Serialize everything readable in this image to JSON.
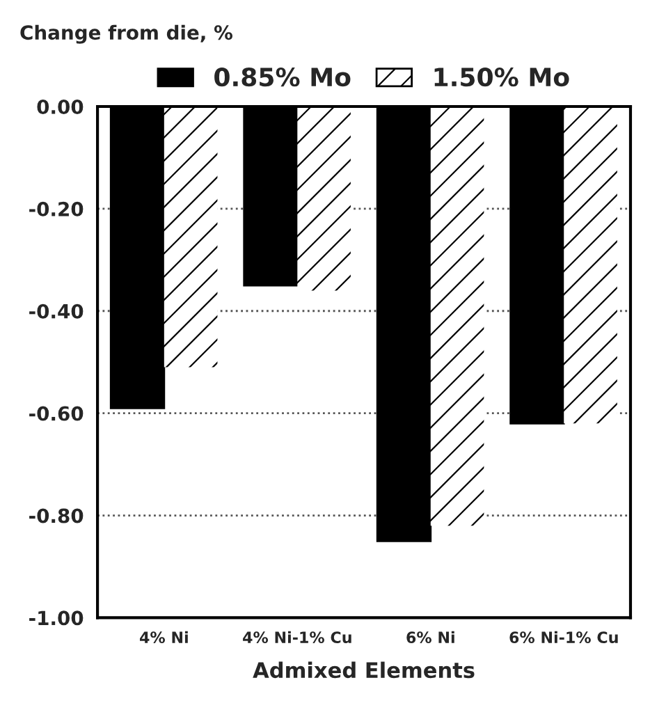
{
  "chart_data": {
    "type": "bar",
    "ylabel": "Change from die, %",
    "xlabel": "Admixed Elements",
    "categories": [
      "4% Ni",
      "4% Ni-1% Cu",
      "6% Ni",
      "6% Ni-1% Cu"
    ],
    "series": [
      {
        "name": "0.85% Mo",
        "color": "#000000",
        "values": [
          -0.59,
          -0.35,
          -0.85,
          -0.62
        ]
      },
      {
        "name": "1.50% Mo",
        "color": "#ffffff",
        "values": [
          -0.51,
          -0.36,
          -0.82,
          -0.62
        ]
      }
    ],
    "ylim": [
      -1.0,
      0.0
    ],
    "yticks": [
      {
        "value": 0.0,
        "label": "0.00"
      },
      {
        "value": -0.2,
        "label": "-0.20"
      },
      {
        "value": -0.4,
        "label": "-0.40"
      },
      {
        "value": -0.6,
        "label": "-0.60"
      },
      {
        "value": -0.8,
        "label": "-0.80"
      },
      {
        "value": -1.0,
        "label": "-1.00"
      }
    ],
    "grid": "y",
    "legend": "top"
  }
}
